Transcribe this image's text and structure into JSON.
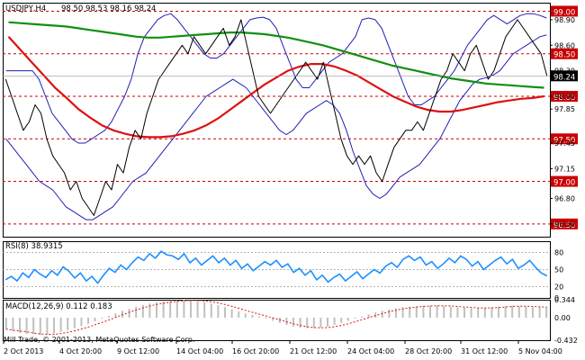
{
  "chart_data": [
    {
      "type": "line",
      "title": "USDJPY,H4",
      "ohlc": {
        "open": 98.5,
        "high": 98.53,
        "low": 98.16,
        "close": 98.24
      },
      "ohlc_text": "98.50 98.53 98.16 98.24",
      "ylim": [
        96.35,
        99.1
      ],
      "yticks": [
        "98.90",
        "98.60",
        "98.30",
        "98.00",
        "97.85",
        "97.45",
        "97.15",
        "96.80",
        "96.50"
      ],
      "levels": [
        {
          "value": 99.0,
          "label": "99.00"
        },
        {
          "value": 98.5,
          "label": "98.50"
        },
        {
          "value": 98.0,
          "label": "98.00"
        },
        {
          "value": 97.5,
          "label": "97.50"
        },
        {
          "value": 97.0,
          "label": "97.00"
        },
        {
          "value": 96.5,
          "label": "96.50"
        }
      ],
      "current_price": {
        "value": 98.24,
        "label": "98.24"
      },
      "x_labels": [
        "2 Oct 2013",
        "4 Oct 20:00",
        "9 Oct 12:00",
        "14 Oct 04:00",
        "16 Oct 20:00",
        "21 Oct 12:00",
        "24 Oct 04:00",
        "28 Oct 20:00",
        "31 Oct 12:00",
        "5 Nov 04:00"
      ],
      "series": [
        {
          "values": [
            98.2,
            98.0,
            97.8,
            97.6,
            97.7,
            97.9,
            97.8,
            97.5,
            97.3,
            97.2,
            97.1,
            96.9,
            97.0,
            96.8,
            96.7,
            96.6,
            96.8,
            97.0,
            96.9,
            97.2,
            97.1,
            97.4,
            97.6,
            97.5,
            97.8,
            98.0,
            98.2,
            98.3,
            98.4,
            98.5,
            98.6,
            98.5,
            98.7,
            98.6,
            98.5,
            98.6,
            98.7,
            98.8,
            98.6,
            98.7,
            98.9,
            98.6,
            98.3,
            98.0,
            97.9,
            97.8,
            97.9,
            98.0,
            98.1,
            98.2,
            98.3,
            98.4,
            98.3,
            98.2,
            98.4,
            98.1,
            97.8,
            97.5,
            97.3,
            97.2,
            97.3,
            97.2,
            97.3,
            97.1,
            97.0,
            97.2,
            97.4,
            97.5,
            97.6,
            97.6,
            97.7,
            97.6,
            97.8,
            98.0,
            98.2,
            98.3,
            98.5,
            98.4,
            98.3,
            98.5,
            98.6,
            98.4,
            98.2,
            98.3,
            98.5,
            98.7,
            98.8,
            98.9,
            98.8,
            98.7,
            98.6,
            98.5,
            98.24
          ]
        },
        {
          "name": "Bands upper",
          "values": [
            98.3,
            98.3,
            98.3,
            98.3,
            98.3,
            98.2,
            98.0,
            97.8,
            97.7,
            97.6,
            97.5,
            97.45,
            97.45,
            97.5,
            97.55,
            97.6,
            97.7,
            97.85,
            98.0,
            98.2,
            98.5,
            98.7,
            98.8,
            98.9,
            98.95,
            98.97,
            98.9,
            98.8,
            98.7,
            98.6,
            98.5,
            98.45,
            98.45,
            98.5,
            98.6,
            98.7,
            98.8,
            98.9,
            98.92,
            98.93,
            98.9,
            98.8,
            98.6,
            98.4,
            98.2,
            98.1,
            98.1,
            98.2,
            98.3,
            98.4,
            98.45,
            98.5,
            98.6,
            98.7,
            98.9,
            98.92,
            98.9,
            98.8,
            98.6,
            98.4,
            98.2,
            98.0,
            97.9,
            97.9,
            97.95,
            98.0,
            98.1,
            98.2,
            98.3,
            98.45,
            98.6,
            98.7,
            98.8,
            98.9,
            98.95,
            98.9,
            98.85,
            98.9,
            98.95,
            98.97,
            98.97,
            98.95,
            98.92
          ]
        },
        {
          "name": "Bands lower",
          "values": [
            97.5,
            97.4,
            97.3,
            97.2,
            97.1,
            97.0,
            96.95,
            96.9,
            96.8,
            96.7,
            96.65,
            96.6,
            96.55,
            96.55,
            96.6,
            96.65,
            96.7,
            96.8,
            96.9,
            97.0,
            97.05,
            97.1,
            97.2,
            97.3,
            97.4,
            97.5,
            97.6,
            97.7,
            97.8,
            97.9,
            98.0,
            98.05,
            98.1,
            98.15,
            98.2,
            98.15,
            98.1,
            98.0,
            97.9,
            97.8,
            97.7,
            97.6,
            97.55,
            97.6,
            97.7,
            97.8,
            97.85,
            97.9,
            97.95,
            97.9,
            97.8,
            97.6,
            97.35,
            97.15,
            96.95,
            96.85,
            96.8,
            96.85,
            96.95,
            97.05,
            97.1,
            97.15,
            97.2,
            97.3,
            97.4,
            97.5,
            97.65,
            97.8,
            97.95,
            98.05,
            98.15,
            98.2,
            98.22,
            98.25,
            98.3,
            98.4,
            98.5,
            98.55,
            98.6,
            98.65,
            98.7,
            98.72
          ]
        },
        {
          "name": "MA green",
          "values": [
            98.87,
            98.86,
            98.85,
            98.84,
            98.83,
            98.82,
            98.8,
            98.78,
            98.76,
            98.74,
            98.72,
            98.7,
            98.69,
            98.69,
            98.7,
            98.71,
            98.72,
            98.73,
            98.74,
            98.75,
            98.75,
            98.74,
            98.73,
            98.71,
            98.69,
            98.66,
            98.63,
            98.6,
            98.56,
            98.52,
            98.48,
            98.44,
            98.4,
            98.36,
            98.33,
            98.3,
            98.27,
            98.24,
            98.21,
            98.19,
            98.17,
            98.15,
            98.14,
            98.13,
            98.12,
            98.11,
            98.1
          ]
        },
        {
          "name": "MA red",
          "values": [
            98.7,
            98.55,
            98.4,
            98.25,
            98.1,
            97.98,
            97.85,
            97.75,
            97.66,
            97.6,
            97.56,
            97.53,
            97.52,
            97.52,
            97.53,
            97.56,
            97.6,
            97.66,
            97.74,
            97.84,
            97.94,
            98.04,
            98.14,
            98.22,
            98.3,
            98.35,
            98.38,
            98.38,
            98.35,
            98.3,
            98.24,
            98.16,
            98.08,
            98.0,
            97.94,
            97.88,
            97.84,
            97.82,
            97.82,
            97.84,
            97.87,
            97.9,
            97.93,
            97.95,
            97.97,
            97.98,
            98.0
          ]
        }
      ]
    },
    {
      "type": "line",
      "title": "RSI(8) 38.9315",
      "ylim": [
        0,
        100
      ],
      "yticks": [
        "80",
        "50",
        "20",
        "0"
      ],
      "series": [
        {
          "values": [
            32,
            38,
            30,
            44,
            36,
            50,
            42,
            36,
            48,
            40,
            55,
            47,
            35,
            44,
            30,
            38,
            26,
            40,
            52,
            45,
            58,
            50,
            62,
            72,
            66,
            78,
            70,
            82,
            76,
            74,
            68,
            78,
            62,
            70,
            58,
            66,
            74,
            62,
            70,
            58,
            66,
            52,
            60,
            48,
            56,
            64,
            58,
            66,
            54,
            60,
            45,
            52,
            40,
            48,
            32,
            40,
            28,
            36,
            42,
            30,
            38,
            46,
            34,
            42,
            50,
            44,
            56,
            62,
            54,
            68,
            74,
            66,
            72,
            58,
            64,
            52,
            60,
            70,
            62,
            74,
            68,
            56,
            64,
            50,
            58,
            66,
            72,
            60,
            68,
            52,
            58,
            66,
            54,
            44,
            38.93
          ]
        }
      ]
    },
    {
      "type": "bar",
      "title": "MACD(12,26,9) 0.112 0.183",
      "ylim": [
        -0.432,
        0.344
      ],
      "yticks": [
        "0.344",
        "0.00",
        "-0.432"
      ],
      "series": [
        {
          "values": [
            -0.22,
            -0.26,
            -0.29,
            -0.31,
            -0.32,
            -0.33,
            -0.32,
            -0.3,
            -0.27,
            -0.24,
            -0.2,
            -0.16,
            -0.12,
            -0.07,
            -0.02,
            0.03,
            0.08,
            0.13,
            0.17,
            0.21,
            0.24,
            0.27,
            0.29,
            0.31,
            0.32,
            0.33,
            0.34,
            0.33,
            0.32,
            0.3,
            0.27,
            0.24,
            0.2,
            0.16,
            0.12,
            0.08,
            0.05,
            0.02,
            -0.02,
            -0.06,
            -0.1,
            -0.14,
            -0.17,
            -0.19,
            -0.2,
            -0.2,
            -0.19,
            -0.17,
            -0.14,
            -0.1,
            -0.06,
            -0.02,
            0.02,
            0.06,
            0.1,
            0.13,
            0.16,
            0.18,
            0.2,
            0.21,
            0.22,
            0.23,
            0.23,
            0.23,
            0.22,
            0.21,
            0.2,
            0.19,
            0.18,
            0.18,
            0.19,
            0.2,
            0.21,
            0.22,
            0.23,
            0.22,
            0.21,
            0.2,
            0.2,
            0.21
          ]
        }
      ]
    }
  ],
  "footer": {
    "copyright": "Mill Trade, © 2001-2013, MetaQuotes Software Corp."
  },
  "colors": {
    "ma_green": "#119011",
    "ma_red": "#dd1111",
    "bands": "#1f1fb5",
    "level": "#cc0000",
    "price_line": "#000000",
    "rsi": "#1e90ff",
    "macd": "#c0c0c0",
    "signal": "#dd1111"
  }
}
